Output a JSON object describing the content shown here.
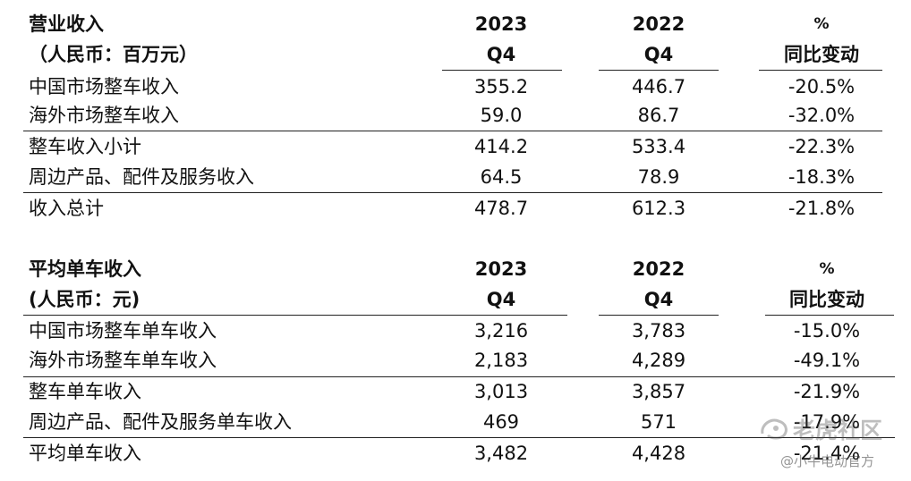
{
  "revenue_table": {
    "title": "营业收入",
    "unit": "（人民币：百万元）",
    "col1_year": "2023",
    "col1_q": "Q4",
    "col2_year": "2022",
    "col2_q": "Q4",
    "col3_top": "%",
    "col3_label": "同比变动",
    "rows": [
      {
        "label": "中国市场整车收入",
        "v2023": "355.2",
        "v2022": "446.7",
        "yoy": "-20.5%"
      },
      {
        "label": "海外市场整车收入",
        "v2023": "59.0",
        "v2022": "86.7",
        "yoy": "-32.0%"
      },
      {
        "label": "整车收入小计",
        "v2023": "414.2",
        "v2022": "533.4",
        "yoy": "-22.3%"
      },
      {
        "label": "周边产品、配件及服务收入",
        "v2023": "64.5",
        "v2022": "78.9",
        "yoy": "-18.3%"
      },
      {
        "label": "收入总计",
        "v2023": "478.7",
        "v2022": "612.3",
        "yoy": "-21.8%"
      }
    ]
  },
  "per_unit_table": {
    "title": "平均单车收入",
    "unit": "(人民币：元)",
    "col1_year": "2023",
    "col1_q": "Q4",
    "col2_year": "2022",
    "col2_q": "Q4",
    "col3_top": "%",
    "col3_label": "同比变动",
    "rows": [
      {
        "label": "中国市场整车单车收入",
        "v2023": "3,216",
        "v2022": "3,783",
        "yoy": "-15.0%"
      },
      {
        "label": "海外市场整车单车收入",
        "v2023": "2,183",
        "v2022": "4,289",
        "yoy": "-49.1%"
      },
      {
        "label": "整车单车收入",
        "v2023": "3,013",
        "v2022": "3,857",
        "yoy": "-21.9%"
      },
      {
        "label": "周边产品、配件及服务单车收入",
        "v2023": "469",
        "v2022": "571",
        "yoy": "-17.9%"
      },
      {
        "label": "平均单车收入",
        "v2023": "3,482",
        "v2022": "4,428",
        "yoy": "-21.4%"
      }
    ]
  },
  "watermark": {
    "community": "老虎社区",
    "author": "@小牛电动官方"
  }
}
